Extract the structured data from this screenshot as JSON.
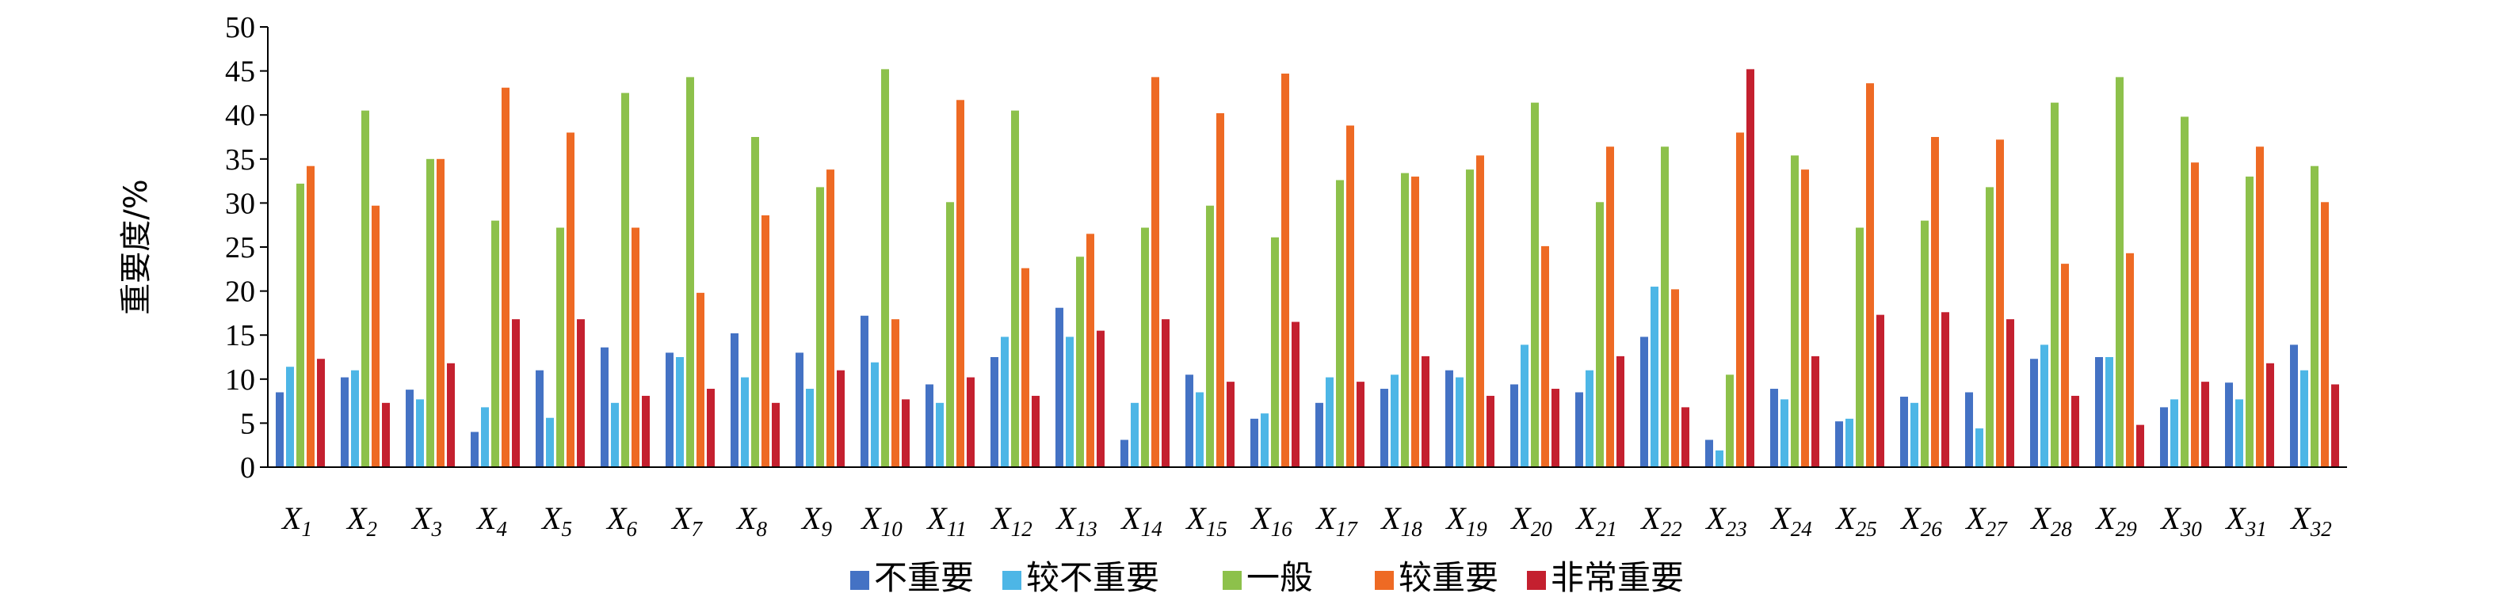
{
  "chart_data": {
    "type": "bar",
    "ylabel": "重要度/%",
    "ylim": [
      0,
      50
    ],
    "yticks": [
      0,
      5,
      10,
      15,
      20,
      25,
      30,
      35,
      40,
      45,
      50
    ],
    "grid": false,
    "legend_position": "bottom",
    "categories": [
      {
        "base": "X",
        "sub": "1"
      },
      {
        "base": "X",
        "sub": "2"
      },
      {
        "base": "X",
        "sub": "3"
      },
      {
        "base": "X",
        "sub": "4"
      },
      {
        "base": "X",
        "sub": "5"
      },
      {
        "base": "X",
        "sub": "6"
      },
      {
        "base": "X",
        "sub": "7"
      },
      {
        "base": "X",
        "sub": "8"
      },
      {
        "base": "X",
        "sub": "9"
      },
      {
        "base": "X",
        "sub": "10"
      },
      {
        "base": "X",
        "sub": "11"
      },
      {
        "base": "X",
        "sub": "12"
      },
      {
        "base": "X",
        "sub": "13"
      },
      {
        "base": "X",
        "sub": "14"
      },
      {
        "base": "X",
        "sub": "15"
      },
      {
        "base": "X",
        "sub": "16"
      },
      {
        "base": "X",
        "sub": "17"
      },
      {
        "base": "X",
        "sub": "18"
      },
      {
        "base": "X",
        "sub": "19"
      },
      {
        "base": "X",
        "sub": "20"
      },
      {
        "base": "X",
        "sub": "21"
      },
      {
        "base": "X",
        "sub": "22"
      },
      {
        "base": "X",
        "sub": "23"
      },
      {
        "base": "X",
        "sub": "24"
      },
      {
        "base": "X",
        "sub": "25"
      },
      {
        "base": "X",
        "sub": "26"
      },
      {
        "base": "X",
        "sub": "27"
      },
      {
        "base": "X",
        "sub": "28"
      },
      {
        "base": "X",
        "sub": "29"
      },
      {
        "base": "X",
        "sub": "30"
      },
      {
        "base": "X",
        "sub": "31"
      },
      {
        "base": "X",
        "sub": "32"
      }
    ],
    "series": [
      {
        "name": "不重要",
        "color": "#4472C4",
        "values": [
          8.5,
          10.2,
          8.8,
          4.0,
          11.0,
          13.6,
          13.0,
          15.2,
          13.0,
          17.2,
          9.4,
          12.5,
          18.1,
          3.1,
          10.5,
          5.5,
          7.3,
          8.9,
          11.0,
          9.4,
          8.5,
          14.8,
          3.1,
          8.9,
          5.2,
          8.0,
          8.5,
          12.3,
          12.5,
          6.8,
          9.6,
          13.9
        ]
      },
      {
        "name": "较不重要",
        "color": "#4DB6E6",
        "values": [
          11.4,
          11.0,
          7.7,
          6.8,
          5.6,
          7.3,
          12.5,
          10.2,
          8.9,
          11.9,
          7.3,
          14.8,
          14.8,
          7.3,
          8.5,
          6.1,
          10.2,
          10.5,
          10.2,
          13.9,
          11.0,
          20.5,
          1.9,
          7.7,
          5.5,
          7.3,
          4.4,
          13.9,
          12.5,
          7.7,
          7.7,
          11.0
        ]
      },
      {
        "name": "一般",
        "color": "#8DC14B",
        "values": [
          32.2,
          40.5,
          35.0,
          28.0,
          27.2,
          42.5,
          44.3,
          37.5,
          31.8,
          45.2,
          30.1,
          40.5,
          23.9,
          27.2,
          29.7,
          26.1,
          32.6,
          33.4,
          33.8,
          41.4,
          30.1,
          36.4,
          10.5,
          35.4,
          27.2,
          28.0,
          31.8,
          41.4,
          44.3,
          39.8,
          33.0,
          34.2
        ]
      },
      {
        "name": "较重要",
        "color": "#EE6A24",
        "values": [
          34.2,
          29.7,
          35.0,
          43.1,
          38.0,
          27.2,
          19.8,
          28.6,
          33.8,
          16.8,
          41.7,
          22.6,
          26.5,
          44.3,
          40.2,
          44.7,
          38.8,
          33.0,
          35.4,
          25.1,
          36.4,
          20.2,
          38.0,
          33.8,
          43.6,
          37.5,
          37.2,
          23.1,
          24.3,
          34.6,
          36.4,
          30.1
        ]
      },
      {
        "name": "非常重要",
        "color": "#C4202F",
        "values": [
          12.3,
          7.3,
          11.8,
          16.8,
          16.8,
          8.1,
          8.9,
          7.3,
          11.0,
          7.7,
          10.2,
          8.1,
          15.5,
          16.8,
          9.7,
          16.5,
          9.7,
          12.6,
          8.1,
          8.9,
          12.6,
          6.8,
          45.2,
          12.6,
          17.3,
          17.6,
          16.8,
          8.1,
          4.8,
          9.7,
          11.8,
          9.4
        ]
      }
    ]
  }
}
